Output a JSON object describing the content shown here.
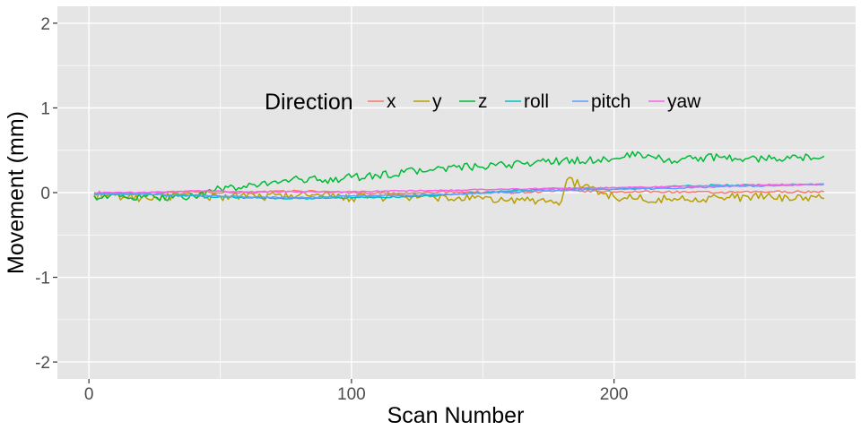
{
  "chart_data": {
    "type": "line",
    "title": "",
    "xlabel": "Scan Number",
    "ylabel": "Movement (mm)",
    "xlim": [
      -12,
      292
    ],
    "ylim": [
      -2.2,
      2.2
    ],
    "x_ticks": [
      0,
      100,
      200
    ],
    "x_tick_labels": [
      "0",
      "100",
      "200"
    ],
    "y_ticks": [
      -2,
      -1,
      0,
      1,
      2
    ],
    "y_tick_labels": [
      "-2",
      "-1",
      "0",
      "1",
      "2"
    ],
    "grid": true,
    "legend": {
      "title": "Direction",
      "placement": "inside-top-center",
      "orientation": "horizontal"
    },
    "background_color": "#E5E5E5",
    "grid_color": "#FFFFFF",
    "series": [
      {
        "name": "x",
        "color": "#F8766D",
        "x": [
          2,
          20,
          40,
          60,
          80,
          100,
          120,
          140,
          160,
          180,
          200,
          220,
          240,
          260,
          280
        ],
        "values": [
          -0.01,
          0.0,
          0.01,
          0.0,
          0.02,
          0.0,
          -0.01,
          0.01,
          0.0,
          0.02,
          0.01,
          0.01,
          0.0,
          0.01,
          0.01
        ]
      },
      {
        "name": "y",
        "color": "#B79F00",
        "x": [
          2,
          20,
          40,
          60,
          80,
          100,
          120,
          140,
          160,
          180,
          182,
          200,
          220,
          240,
          260,
          280
        ],
        "values": [
          -0.03,
          -0.06,
          -0.04,
          -0.05,
          -0.03,
          -0.06,
          -0.05,
          -0.07,
          -0.09,
          -0.1,
          0.15,
          -0.05,
          -0.08,
          -0.06,
          -0.05,
          -0.07
        ]
      },
      {
        "name": "z",
        "color": "#00BA38",
        "x": [
          2,
          20,
          40,
          50,
          60,
          70,
          80,
          90,
          100,
          110,
          120,
          130,
          140,
          150,
          160,
          170,
          180,
          190,
          200,
          210,
          220,
          230,
          240,
          250,
          260,
          270,
          280
        ],
        "values": [
          -0.04,
          -0.06,
          -0.04,
          0.05,
          0.06,
          0.13,
          0.16,
          0.15,
          0.18,
          0.2,
          0.24,
          0.27,
          0.3,
          0.3,
          0.33,
          0.36,
          0.37,
          0.38,
          0.4,
          0.46,
          0.38,
          0.4,
          0.42,
          0.4,
          0.4,
          0.41,
          0.43
        ]
      },
      {
        "name": "roll",
        "color": "#00BFC4",
        "x": [
          2,
          20,
          40,
          60,
          80,
          100,
          120,
          140,
          160,
          180,
          200,
          220,
          240,
          260,
          280
        ],
        "values": [
          -0.01,
          -0.02,
          -0.04,
          -0.06,
          -0.07,
          -0.06,
          -0.05,
          -0.02,
          0.02,
          0.05,
          0.04,
          0.07,
          0.09,
          0.09,
          0.1
        ]
      },
      {
        "name": "pitch",
        "color": "#619CFF",
        "x": [
          2,
          20,
          40,
          60,
          80,
          100,
          120,
          140,
          160,
          180,
          200,
          220,
          240,
          260,
          280
        ],
        "values": [
          -0.02,
          -0.02,
          -0.03,
          -0.05,
          -0.06,
          -0.04,
          -0.03,
          -0.02,
          0.01,
          0.03,
          0.04,
          0.05,
          0.07,
          0.08,
          0.1
        ]
      },
      {
        "name": "yaw",
        "color": "#F564E3",
        "x": [
          2,
          20,
          40,
          60,
          80,
          100,
          120,
          140,
          160,
          180,
          200,
          220,
          240,
          260,
          280
        ],
        "values": [
          0.0,
          0.0,
          0.02,
          0.01,
          0.01,
          0.01,
          0.02,
          0.03,
          0.04,
          0.05,
          0.06,
          0.07,
          0.08,
          0.09,
          0.1
        ]
      }
    ]
  }
}
